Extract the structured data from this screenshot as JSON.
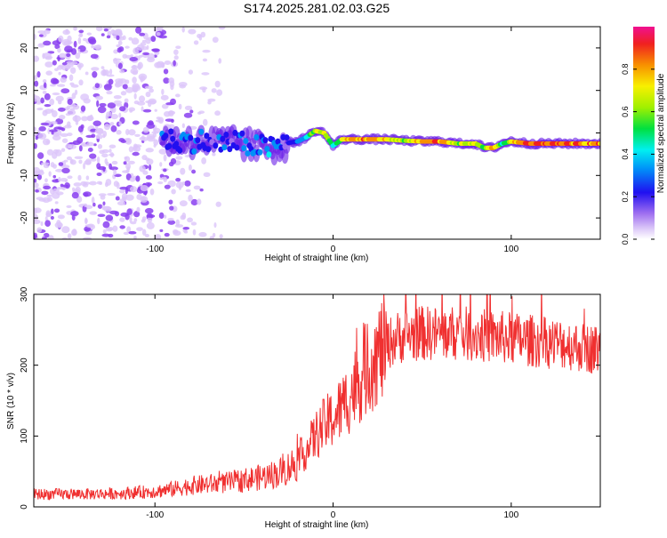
{
  "title": "S174.2025.281.02.03.G25",
  "chart_data": [
    {
      "type": "heatmap",
      "xlabel": "Height of straight line (km)",
      "ylabel": "Frequency (Hz)",
      "xlim": [
        -168,
        150
      ],
      "ylim": [
        -25,
        25
      ],
      "xticks": [
        -100,
        0,
        100
      ],
      "yticks": [
        -20,
        -10,
        0,
        10,
        20
      ],
      "colorbar": {
        "label": "Normalized spectral amplitude",
        "range": [
          0,
          1
        ],
        "ticks": [
          0.0,
          0.2,
          0.4,
          0.6,
          0.8
        ],
        "tick_labels": [
          "0.0",
          "0.2",
          "0.4",
          "0.6",
          "0.8"
        ]
      },
      "signal_trace": {
        "x": [
          -95,
          -85,
          -75,
          -65,
          -55,
          -45,
          -35,
          -28,
          -20,
          -15,
          -10,
          -5,
          0,
          5,
          10,
          20,
          30,
          40,
          50,
          60,
          70,
          80,
          85,
          90,
          95,
          100,
          110,
          120,
          130,
          140,
          150
        ],
        "freq": [
          -1.5,
          -2.0,
          -1.8,
          -2.5,
          -2.2,
          -3.0,
          -3.5,
          -2.5,
          -2.0,
          -1.0,
          0.5,
          0.0,
          -3.0,
          -1.5,
          -1.5,
          -1.5,
          -1.5,
          -1.8,
          -2.0,
          -2.0,
          -2.5,
          -2.5,
          -3.5,
          -3.5,
          -2.5,
          -2.0,
          -2.5,
          -2.5,
          -2.5,
          -2.5,
          -2.5
        ],
        "amp": [
          0.3,
          0.35,
          0.3,
          0.3,
          0.3,
          0.35,
          0.4,
          0.3,
          0.35,
          0.5,
          0.7,
          0.8,
          0.5,
          0.7,
          0.9,
          0.9,
          0.8,
          0.7,
          0.9,
          0.95,
          0.7,
          0.8,
          0.6,
          0.9,
          0.5,
          0.8,
          0.95,
          0.95,
          0.95,
          0.9,
          0.9
        ]
      }
    },
    {
      "type": "line",
      "xlabel": "Height of straight line (km)",
      "ylabel": "SNR (10 * v/v)",
      "xlim": [
        -168,
        150
      ],
      "ylim": [
        0,
        300
      ],
      "xticks": [
        -100,
        0,
        100
      ],
      "yticks": [
        0,
        100,
        200,
        300
      ],
      "color": "#f03030",
      "envelope": {
        "x": [
          -168,
          -140,
          -120,
          -100,
          -90,
          -80,
          -70,
          -60,
          -50,
          -40,
          -30,
          -25,
          -20,
          -15,
          -10,
          -5,
          0,
          5,
          10,
          15,
          20,
          25,
          30,
          35,
          40,
          50,
          60,
          70,
          80,
          90,
          100,
          110,
          120,
          130,
          140,
          150
        ],
        "y": [
          18,
          18,
          19,
          22,
          25,
          30,
          32,
          34,
          38,
          42,
          48,
          55,
          65,
          80,
          100,
          115,
          125,
          140,
          160,
          180,
          200,
          215,
          228,
          238,
          242,
          245,
          245,
          245,
          243,
          240,
          238,
          235,
          232,
          230,
          225,
          222
        ]
      }
    }
  ]
}
